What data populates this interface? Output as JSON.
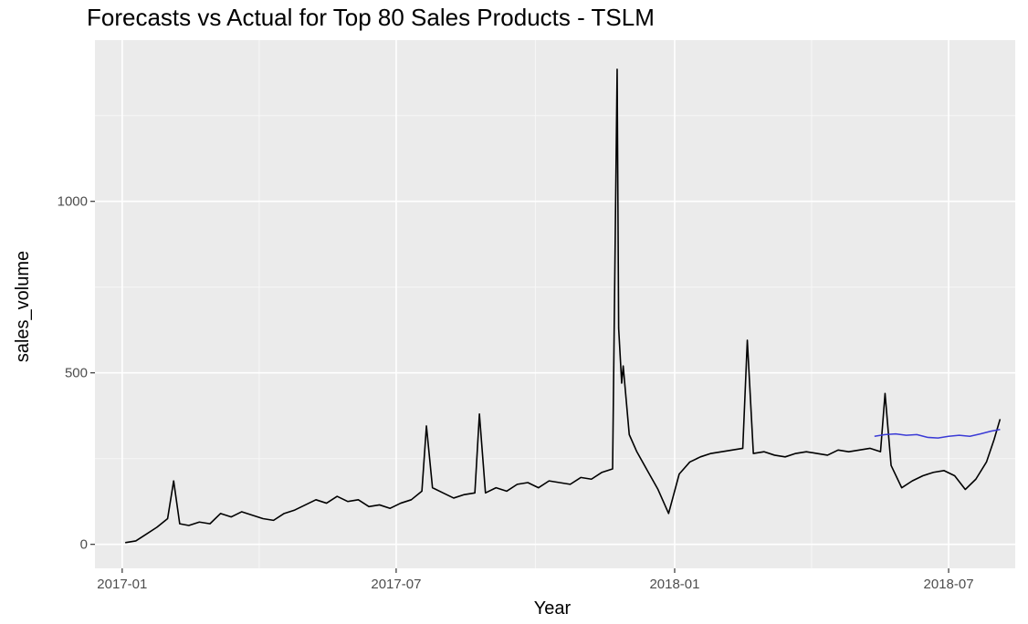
{
  "chart_data": {
    "type": "line",
    "title": "Forecasts vs Actual for Top 80 Sales Products - TSLM",
    "xlabel": "Year",
    "ylabel": "sales_volume",
    "x_type": "date",
    "xlim": [
      "2016-12-14",
      "2018-08-14"
    ],
    "ylim": [
      -70,
      1470
    ],
    "x_ticks": [
      {
        "date": "2017-01-01",
        "label": "2017-01"
      },
      {
        "date": "2017-07-01",
        "label": "2017-07"
      },
      {
        "date": "2018-01-01",
        "label": "2018-01"
      },
      {
        "date": "2018-07-01",
        "label": "2018-07"
      }
    ],
    "y_ticks": [
      0,
      500,
      1000
    ],
    "grid": true,
    "legend": "none",
    "background": "#ebebeb",
    "series": [
      {
        "role": "actual",
        "color": "#000000",
        "points": [
          [
            "2017-01-03",
            5
          ],
          [
            "2017-01-10",
            10
          ],
          [
            "2017-01-17",
            30
          ],
          [
            "2017-01-24",
            50
          ],
          [
            "2017-01-31",
            75
          ],
          [
            "2017-02-04",
            185
          ],
          [
            "2017-02-08",
            60
          ],
          [
            "2017-02-14",
            55
          ],
          [
            "2017-02-21",
            65
          ],
          [
            "2017-02-28",
            60
          ],
          [
            "2017-03-07",
            90
          ],
          [
            "2017-03-14",
            80
          ],
          [
            "2017-03-21",
            95
          ],
          [
            "2017-03-28",
            85
          ],
          [
            "2017-04-04",
            75
          ],
          [
            "2017-04-11",
            70
          ],
          [
            "2017-04-18",
            90
          ],
          [
            "2017-04-25",
            100
          ],
          [
            "2017-05-02",
            115
          ],
          [
            "2017-05-09",
            130
          ],
          [
            "2017-05-16",
            120
          ],
          [
            "2017-05-23",
            140
          ],
          [
            "2017-05-30",
            125
          ],
          [
            "2017-06-06",
            130
          ],
          [
            "2017-06-13",
            110
          ],
          [
            "2017-06-20",
            115
          ],
          [
            "2017-06-27",
            105
          ],
          [
            "2017-07-04",
            120
          ],
          [
            "2017-07-11",
            130
          ],
          [
            "2017-07-18",
            155
          ],
          [
            "2017-07-21",
            345
          ],
          [
            "2017-07-25",
            165
          ],
          [
            "2017-08-01",
            150
          ],
          [
            "2017-08-08",
            135
          ],
          [
            "2017-08-15",
            145
          ],
          [
            "2017-08-22",
            150
          ],
          [
            "2017-08-25",
            380
          ],
          [
            "2017-08-29",
            150
          ],
          [
            "2017-09-05",
            165
          ],
          [
            "2017-09-12",
            155
          ],
          [
            "2017-09-19",
            175
          ],
          [
            "2017-09-26",
            180
          ],
          [
            "2017-10-03",
            165
          ],
          [
            "2017-10-10",
            185
          ],
          [
            "2017-10-17",
            180
          ],
          [
            "2017-10-24",
            175
          ],
          [
            "2017-10-31",
            195
          ],
          [
            "2017-11-07",
            190
          ],
          [
            "2017-11-14",
            210
          ],
          [
            "2017-11-21",
            220
          ],
          [
            "2017-11-24",
            1385
          ],
          [
            "2017-11-25",
            630
          ],
          [
            "2017-11-27",
            470
          ],
          [
            "2017-11-28",
            520
          ],
          [
            "2017-12-02",
            320
          ],
          [
            "2017-12-07",
            270
          ],
          [
            "2017-12-14",
            215
          ],
          [
            "2017-12-21",
            160
          ],
          [
            "2017-12-28",
            90
          ],
          [
            "2018-01-04",
            205
          ],
          [
            "2018-01-11",
            240
          ],
          [
            "2018-01-18",
            255
          ],
          [
            "2018-01-25",
            265
          ],
          [
            "2018-02-01",
            270
          ],
          [
            "2018-02-08",
            275
          ],
          [
            "2018-02-15",
            280
          ],
          [
            "2018-02-18",
            595
          ],
          [
            "2018-02-22",
            265
          ],
          [
            "2018-03-01",
            270
          ],
          [
            "2018-03-08",
            260
          ],
          [
            "2018-03-15",
            255
          ],
          [
            "2018-03-22",
            265
          ],
          [
            "2018-03-29",
            270
          ],
          [
            "2018-04-05",
            265
          ],
          [
            "2018-04-12",
            260
          ],
          [
            "2018-04-19",
            275
          ],
          [
            "2018-04-26",
            270
          ],
          [
            "2018-05-03",
            275
          ],
          [
            "2018-05-10",
            280
          ],
          [
            "2018-05-17",
            270
          ],
          [
            "2018-05-20",
            440
          ],
          [
            "2018-05-24",
            230
          ],
          [
            "2018-05-31",
            165
          ],
          [
            "2018-06-07",
            185
          ],
          [
            "2018-06-14",
            200
          ],
          [
            "2018-06-21",
            210
          ],
          [
            "2018-06-28",
            215
          ],
          [
            "2018-07-05",
            200
          ],
          [
            "2018-07-12",
            160
          ],
          [
            "2018-07-19",
            190
          ],
          [
            "2018-07-26",
            240
          ],
          [
            "2018-07-31",
            305
          ],
          [
            "2018-08-04",
            365
          ]
        ]
      },
      {
        "role": "forecast",
        "color": "#3b3bd6",
        "points": [
          [
            "2018-05-13",
            315
          ],
          [
            "2018-05-20",
            320
          ],
          [
            "2018-05-27",
            322
          ],
          [
            "2018-06-03",
            318
          ],
          [
            "2018-06-10",
            320
          ],
          [
            "2018-06-17",
            312
          ],
          [
            "2018-06-24",
            310
          ],
          [
            "2018-07-01",
            315
          ],
          [
            "2018-07-08",
            318
          ],
          [
            "2018-07-15",
            315
          ],
          [
            "2018-07-22",
            322
          ],
          [
            "2018-07-29",
            330
          ],
          [
            "2018-08-04",
            335
          ]
        ]
      }
    ]
  }
}
